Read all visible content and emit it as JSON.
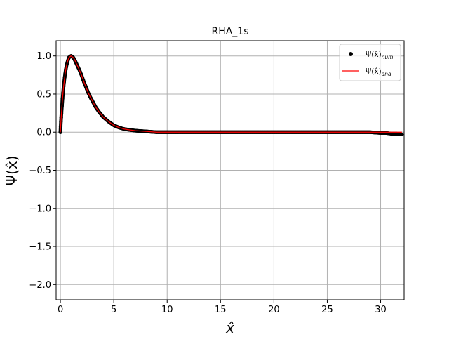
{
  "chart_data": {
    "type": "line",
    "title": "RHA_1s",
    "xlabel": "x̂",
    "ylabel": "Ψ(x̂)",
    "xlim": [
      -0.4,
      32.2
    ],
    "ylim": [
      -2.2,
      1.2
    ],
    "xticks": [
      0,
      5,
      10,
      15,
      20,
      25,
      30
    ],
    "yticks": [
      -2.0,
      -1.5,
      -1.0,
      -0.5,
      0.0,
      0.5,
      1.0
    ],
    "xtick_labels": [
      "0",
      "5",
      "10",
      "15",
      "20",
      "25",
      "30"
    ],
    "ytick_labels": [
      "−2.0",
      "−1.5",
      "−1.0",
      "−0.5",
      "0.0",
      "0.5",
      "1.0"
    ],
    "grid": true,
    "legend_position": "top-right",
    "series": [
      {
        "name": "Ψ(x̂)num",
        "label_main": "Ψ(x̂)",
        "label_sub": "num",
        "style": "scatter",
        "color": "#000000",
        "x": [
          0.0,
          0.05,
          0.1,
          0.2,
          0.3,
          0.4,
          0.5,
          0.6,
          0.7,
          0.8,
          0.9,
          1.0,
          1.1,
          1.2,
          1.3,
          1.4,
          1.5,
          1.6,
          1.8,
          2.0,
          2.2,
          2.4,
          2.6,
          2.8,
          3.0,
          3.3,
          3.6,
          4.0,
          4.5,
          5.0,
          5.5,
          6.0,
          6.5,
          7.0,
          8.0,
          9.0,
          10.0,
          12.0,
          15.0,
          18.0,
          21.0,
          24.0,
          27.0,
          29.0,
          30.0,
          30.5,
          31.0,
          31.5,
          32.0
        ],
        "y": [
          0.0,
          0.14,
          0.25,
          0.44,
          0.6,
          0.72,
          0.82,
          0.89,
          0.94,
          0.98,
          0.99,
          1.0,
          0.99,
          0.98,
          0.96,
          0.93,
          0.9,
          0.87,
          0.81,
          0.74,
          0.66,
          0.59,
          0.52,
          0.46,
          0.41,
          0.33,
          0.27,
          0.2,
          0.14,
          0.09,
          0.06,
          0.04,
          0.03,
          0.02,
          0.01,
          0.0,
          0.0,
          0.0,
          0.0,
          0.0,
          0.0,
          0.0,
          0.0,
          0.0,
          -0.01,
          -0.01,
          -0.02,
          -0.02,
          -0.03
        ]
      },
      {
        "name": "Ψ(x̂)ana",
        "label_main": "Ψ(x̂)",
        "label_sub": "ana",
        "style": "line",
        "color": "#ff0000",
        "x": [
          0.0,
          0.05,
          0.1,
          0.2,
          0.3,
          0.4,
          0.5,
          0.6,
          0.7,
          0.8,
          0.9,
          1.0,
          1.1,
          1.2,
          1.3,
          1.4,
          1.5,
          1.6,
          1.8,
          2.0,
          2.2,
          2.4,
          2.6,
          2.8,
          3.0,
          3.3,
          3.6,
          4.0,
          4.5,
          5.0,
          5.5,
          6.0,
          6.5,
          7.0,
          8.0,
          9.0,
          10.0,
          12.0,
          15.0,
          18.0,
          21.0,
          24.0,
          27.0,
          29.0,
          30.0,
          30.5,
          31.0,
          31.5,
          32.0
        ],
        "y": [
          0.0,
          0.14,
          0.25,
          0.44,
          0.6,
          0.72,
          0.82,
          0.89,
          0.94,
          0.98,
          0.99,
          1.0,
          0.99,
          0.98,
          0.96,
          0.93,
          0.9,
          0.87,
          0.81,
          0.74,
          0.66,
          0.59,
          0.52,
          0.46,
          0.41,
          0.33,
          0.27,
          0.2,
          0.14,
          0.09,
          0.06,
          0.04,
          0.03,
          0.02,
          0.01,
          0.0,
          0.0,
          0.0,
          0.0,
          0.0,
          0.0,
          0.0,
          0.0,
          0.0,
          0.0,
          0.0,
          0.0,
          0.0,
          0.0
        ]
      }
    ]
  }
}
